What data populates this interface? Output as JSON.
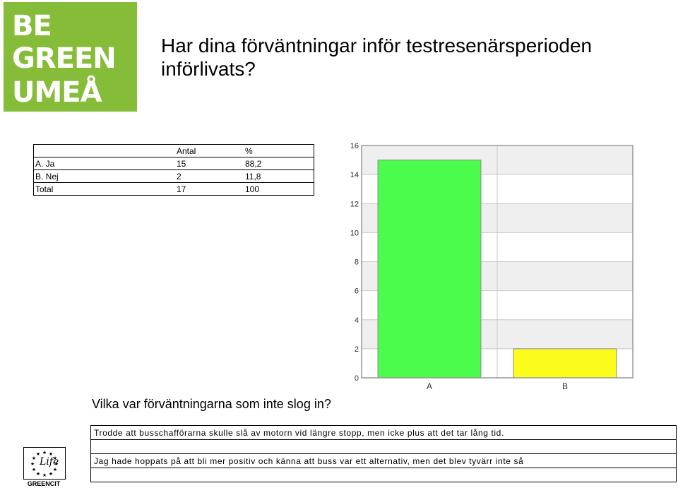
{
  "logo": {
    "line1": "BE",
    "line2": "GREEN",
    "line3": "UMEÅ",
    "color": "#86bd38"
  },
  "title": "Har dina förväntningar inför testresenärsperioden införlivats?",
  "table": {
    "headers": [
      "",
      "Antal",
      "%"
    ],
    "rows": [
      [
        "A. Ja",
        "15",
        "88,2"
      ],
      [
        "B. Nej",
        "2",
        "11,8"
      ],
      [
        "Total",
        "17",
        "100"
      ]
    ]
  },
  "chart_data": {
    "type": "bar",
    "categories": [
      "A",
      "B"
    ],
    "values": [
      15,
      2
    ],
    "colors": [
      "#4cfc4c",
      "#fcfc1c"
    ],
    "ylim": [
      0,
      16
    ],
    "yticks": [
      0,
      2,
      4,
      6,
      8,
      10,
      12,
      14,
      16
    ],
    "grid": true
  },
  "question": "Vilka var förväntningarna som inte slog in?",
  "responses": [
    "Trodde att busschafförarna skulle slå av motorn vid längre stopp, men icke plus att det tar lång tid.",
    "",
    "Jag hade hoppats på att bli mer positiv och känna att buss var ett alternativ, men det blev tyvärr inte så",
    ""
  ],
  "eu_logo": {
    "word": "Life",
    "caption": "GREENCIT"
  }
}
